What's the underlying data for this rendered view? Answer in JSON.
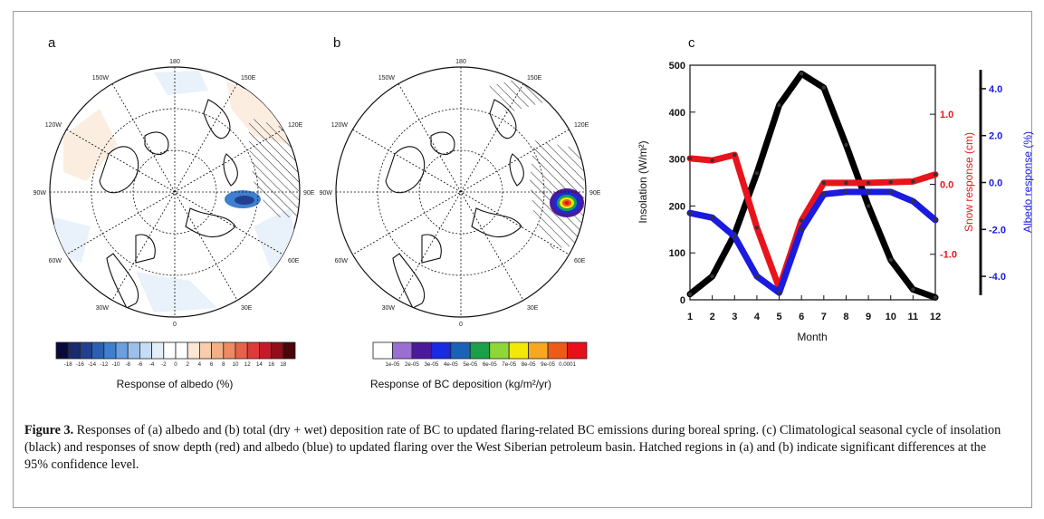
{
  "caption": {
    "label": "Figure 3.",
    "text": "Responses of (a) albedo and (b) total (dry + wet) deposition rate of BC to updated flaring-related BC emissions during boreal spring. (c) Climatological seasonal cycle of insolation (black) and responses of snow depth (red) and albedo (blue) to updated flaring over the West Siberian petroleum basin. Hatched regions in (a) and (b) indicate significant differences at the 95% confidence level."
  },
  "maps": {
    "lon_labels": {
      "top": "180",
      "ne1": "150E",
      "ne2": "120E",
      "e": "90E",
      "se1": "60E",
      "se2": "30E",
      "bottom": "0",
      "sw1": "30W",
      "sw2": "60W",
      "w": "90W",
      "nw1": "120W",
      "nw2": "150W"
    },
    "a": {
      "panel_label": "a",
      "colorbar_ticks": [
        "-18",
        "-16",
        "-14",
        "-12",
        "-10",
        "-8",
        "-6",
        "-4",
        "-2",
        "0",
        "2",
        "4",
        "6",
        "8",
        "10",
        "12",
        "14",
        "16",
        "18"
      ],
      "colorbar_colors": [
        "#0a0a3a",
        "#1b2a6b",
        "#22408f",
        "#2c5fb2",
        "#3f7fd0",
        "#6aa0e0",
        "#9cc0ea",
        "#c6dcf2",
        "#e4eef9",
        "#ffffff",
        "#ffffff",
        "#fbe6d4",
        "#f7cdae",
        "#f3b086",
        "#ee8a62",
        "#e8624a",
        "#de3a3a",
        "#c61a2a",
        "#8f0e1a",
        "#4a0608"
      ],
      "colorbar_label": "Response of albedo (%)"
    },
    "b": {
      "panel_label": "b",
      "colorbar_ticks": [
        "1e-05",
        "2e-05",
        "3e-05",
        "4e-05",
        "5e-05",
        "6e-05",
        "7e-05",
        "8e-05",
        "9e-05",
        "0.0001"
      ],
      "colorbar_colors": [
        "#ffffff",
        "#9a6fd1",
        "#4a1a9a",
        "#1a2ae0",
        "#1a62b8",
        "#1aa04a",
        "#8fd63a",
        "#f4e80a",
        "#f7a81e",
        "#ee5a18",
        "#e8101a"
      ],
      "colorbar_label": "Response of BC deposition (kg/m²/yr)"
    }
  },
  "chart_data": {
    "type": "line",
    "panel_label": "c",
    "x": [
      1,
      2,
      3,
      4,
      5,
      6,
      7,
      8,
      9,
      10,
      11,
      12
    ],
    "xlabel": "Month",
    "xlim": [
      1,
      12
    ],
    "axes": {
      "left": {
        "label": "Insolation (W/m²)",
        "lim": [
          0,
          500
        ],
        "ticks": [
          "0",
          "100",
          "200",
          "300",
          "400",
          "500"
        ],
        "color": "#000000"
      },
      "right1": {
        "label": "Snow response (cm)",
        "lim": [
          -1.65,
          1.7
        ],
        "ticks": [
          "-1.0",
          "0.0",
          "1.0"
        ],
        "color": "#e8141c"
      },
      "right2": {
        "label": "Albedo response (%)",
        "lim": [
          -5.0,
          5.0
        ],
        "ticks": [
          "-4.0",
          "-2.0",
          "0.0",
          "2.0",
          "4.0"
        ],
        "color": "#1a1ae0"
      }
    },
    "series": [
      {
        "axis": "left",
        "color": "#000000",
        "values": [
          12,
          50,
          140,
          270,
          415,
          482,
          452,
          330,
          200,
          85,
          22,
          5
        ]
      },
      {
        "axis": "right1",
        "color": "#e8141c",
        "values": [
          0.37,
          0.34,
          0.42,
          -0.62,
          -1.48,
          -0.52,
          0.02,
          0.02,
          0.02,
          0.03,
          0.04,
          0.14
        ]
      },
      {
        "axis": "right2",
        "color": "#1a1ae0",
        "values": [
          -1.3,
          -1.5,
          -2.3,
          -4.0,
          -4.7,
          -2.0,
          -0.5,
          -0.4,
          -0.4,
          -0.4,
          -0.8,
          -1.6
        ]
      }
    ]
  }
}
